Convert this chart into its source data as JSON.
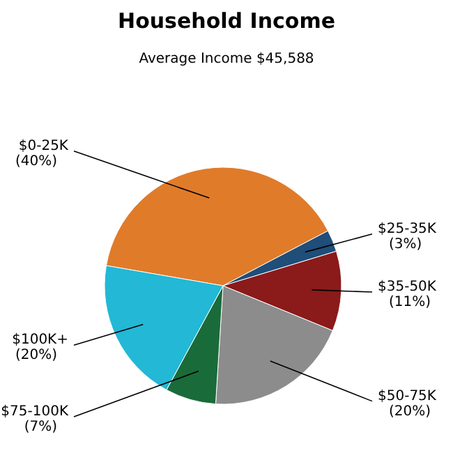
{
  "chart_data": {
    "type": "pie",
    "title": "Household Income",
    "subtitle": "Average Income  $45,588",
    "categories": [
      "$0-25K",
      "$25-35K",
      "$35-50K",
      "$50-75K",
      "$75-100K",
      "$100K+"
    ],
    "values": [
      40,
      3,
      11,
      20,
      7,
      20
    ],
    "value_labels": [
      "(40%)",
      "(3%)",
      "(11%)",
      "(20%)",
      "(7%)",
      "(20%)"
    ],
    "colors": [
      "#e07b2a",
      "#1f4e79",
      "#8b1a1a",
      "#8c8c8c",
      "#1a6b3a",
      "#22b8d6"
    ],
    "legend": false
  }
}
